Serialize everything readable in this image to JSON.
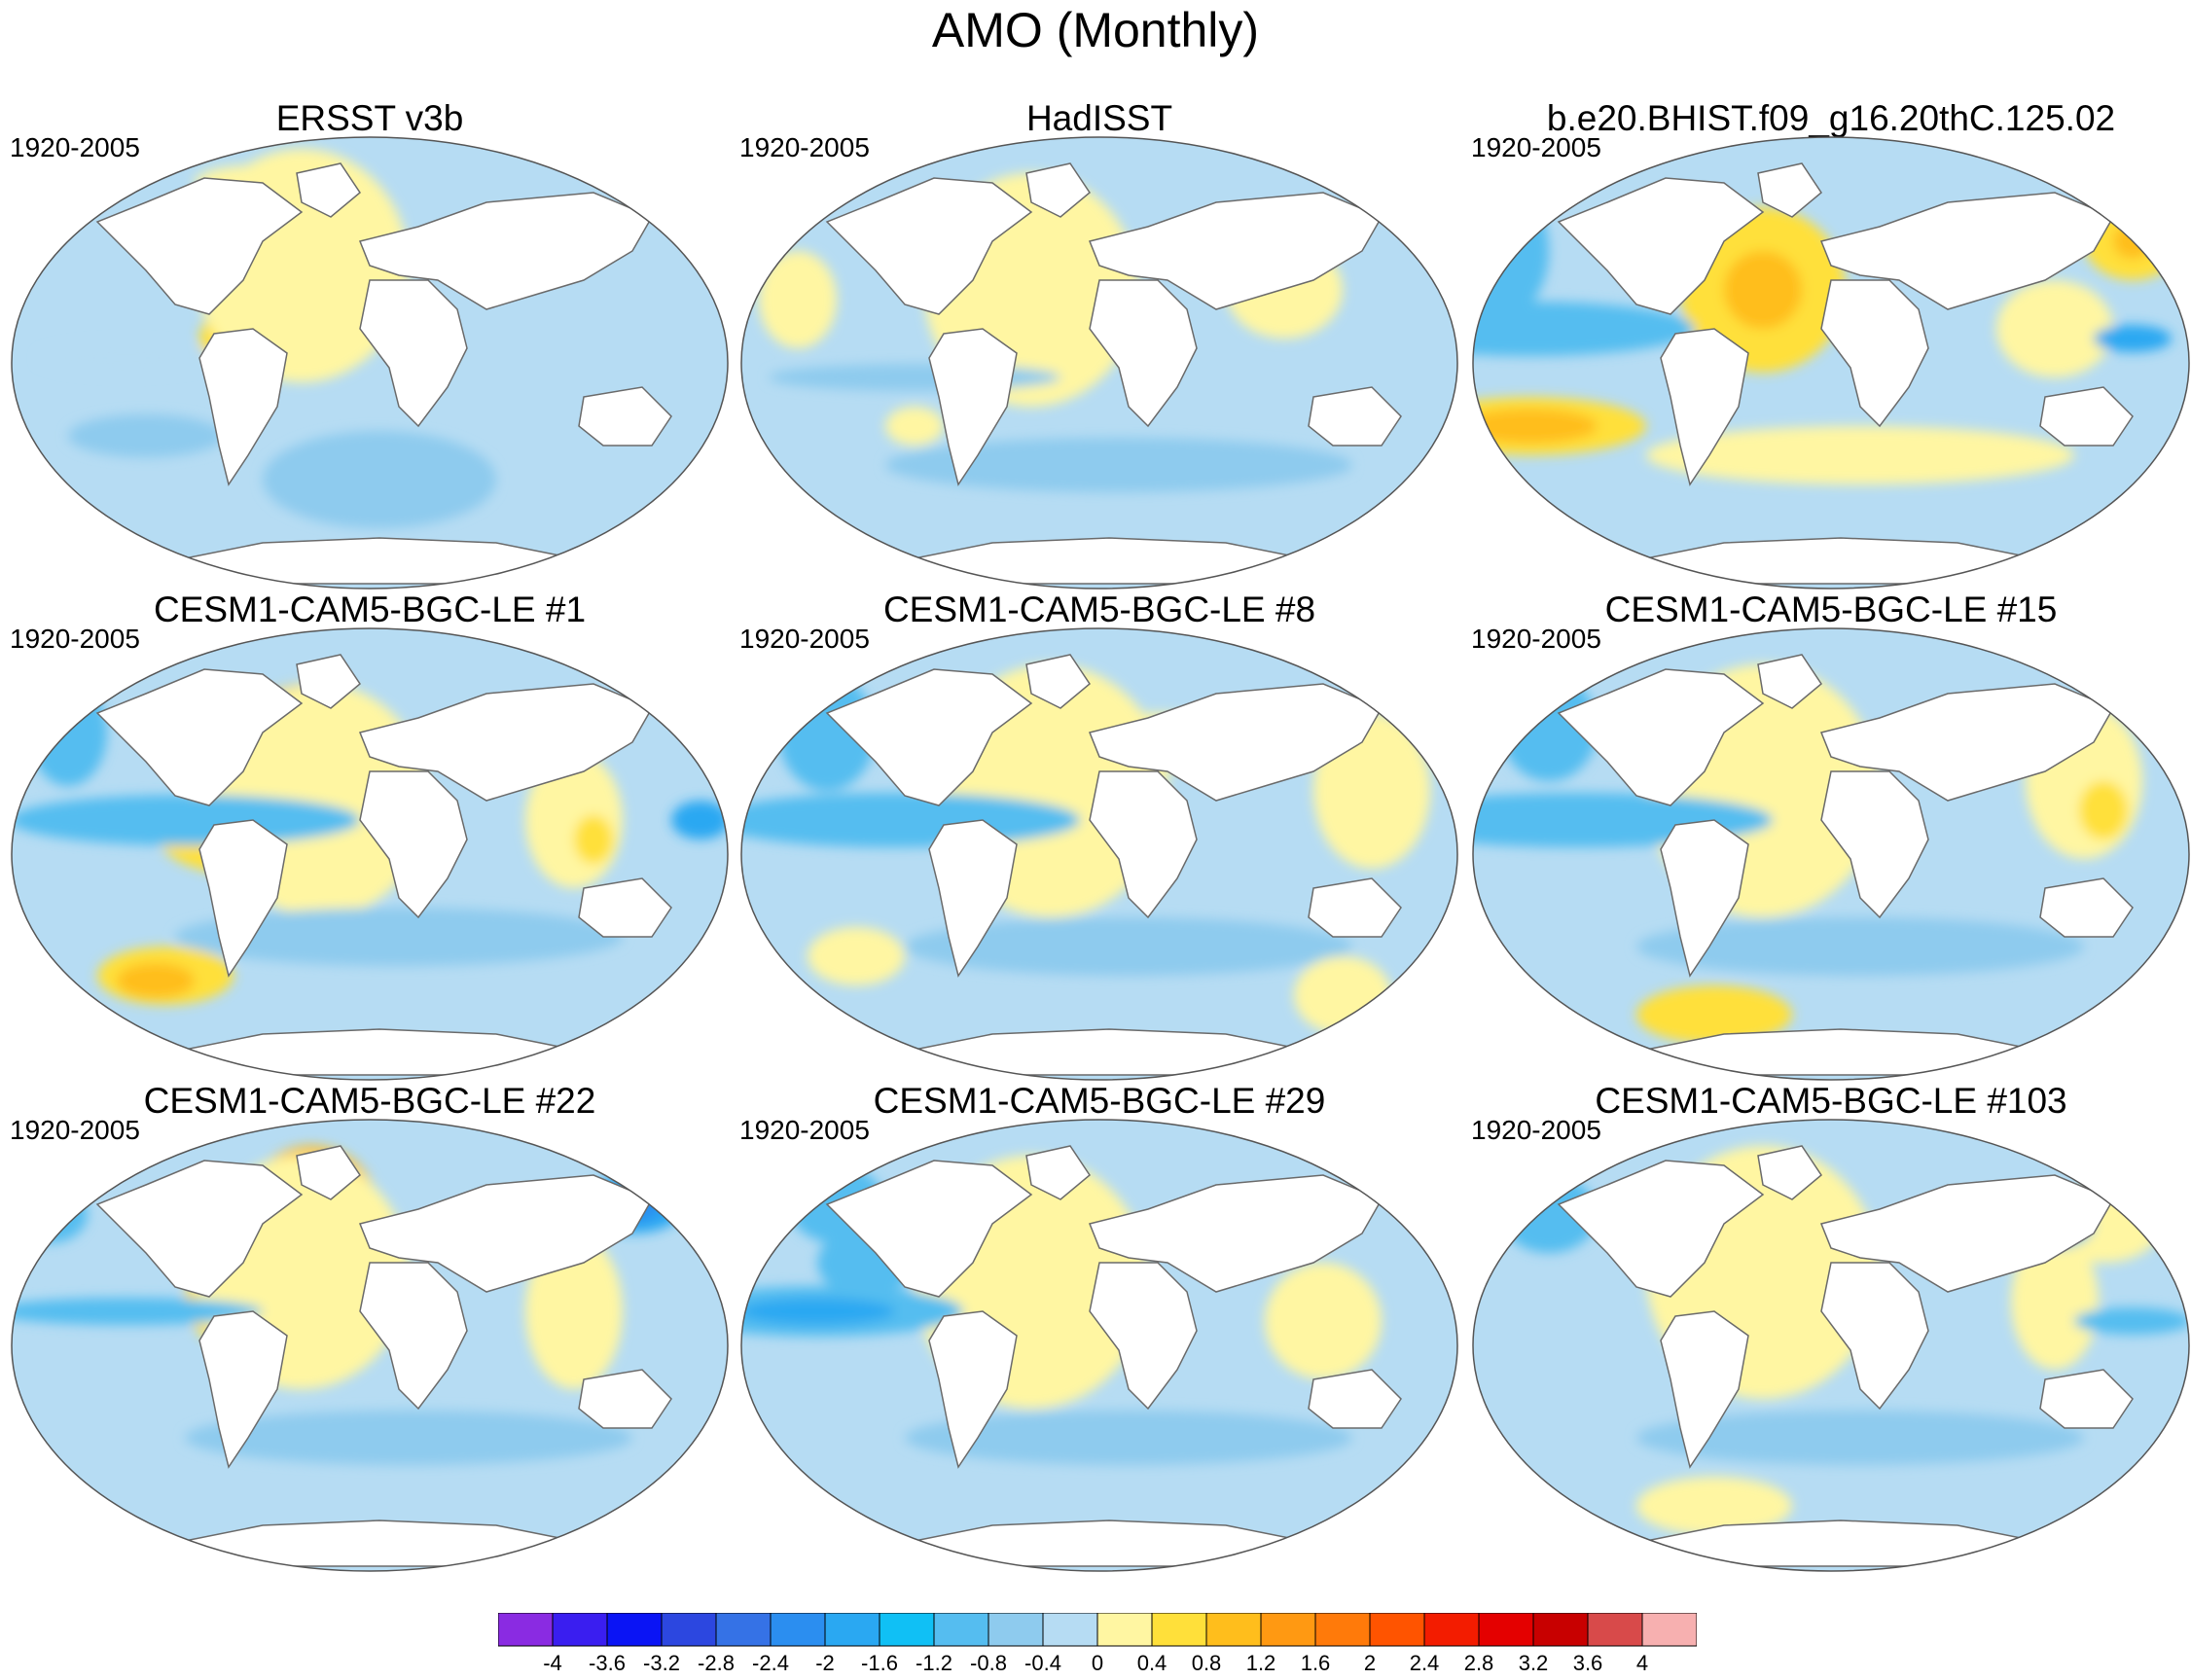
{
  "title": "AMO (Monthly)",
  "panels": [
    {
      "title": "ERSST v3b",
      "period": "1920-2005"
    },
    {
      "title": "HadISST",
      "period": "1920-2005"
    },
    {
      "title": "b.e20.BHIST.f09_g16.20thC.125.02",
      "period": "1920-2005"
    },
    {
      "title": "CESM1-CAM5-BGC-LE #1",
      "period": "1920-2005"
    },
    {
      "title": "CESM1-CAM5-BGC-LE #8",
      "period": "1920-2005"
    },
    {
      "title": "CESM1-CAM5-BGC-LE #15",
      "period": "1920-2005"
    },
    {
      "title": "CESM1-CAM5-BGC-LE #22",
      "period": "1920-2005"
    },
    {
      "title": "CESM1-CAM5-BGC-LE #29",
      "period": "1920-2005"
    },
    {
      "title": "CESM1-CAM5-BGC-LE #103",
      "period": "1920-2005"
    }
  ],
  "colorbar": {
    "labels": [
      "-4",
      "-3.6",
      "-3.2",
      "-2.8",
      "-2.4",
      "-2",
      "-1.6",
      "-1.2",
      "-0.8",
      "-0.4",
      "0",
      "0.4",
      "0.8",
      "1.2",
      "1.6",
      "2",
      "2.4",
      "2.8",
      "3.2",
      "3.6",
      "4"
    ],
    "colors": [
      "#8a2be2",
      "#3a1ef0",
      "#0a14f5",
      "#2c47e0",
      "#3572e6",
      "#2b8ef0",
      "#2aa8f2",
      "#10c0f5",
      "#55bdf0",
      "#8ecbee",
      "#b6dcf3",
      "#fff6a2",
      "#ffe03a",
      "#ffbe1c",
      "#ff9912",
      "#ff7a0a",
      "#ff5400",
      "#f31c00",
      "#e40000",
      "#c80000",
      "#d84a4a",
      "#f7b0b0"
    ]
  },
  "style": {
    "ocean_base": "#b6dcf3",
    "land": "#ffffff",
    "coast": "#6a6a6a"
  }
}
